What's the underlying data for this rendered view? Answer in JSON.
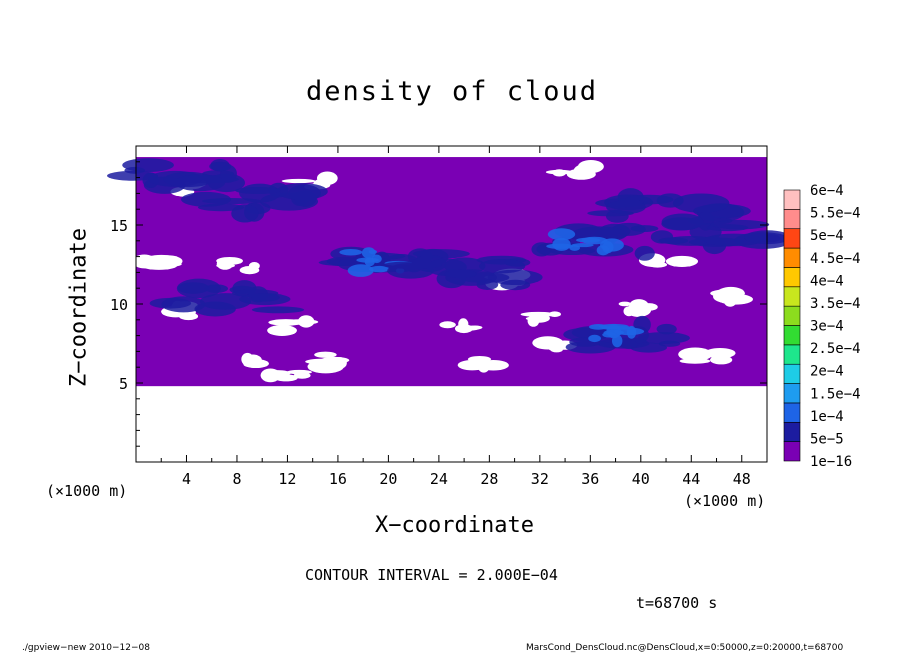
{
  "chart_data": {
    "type": "heatmap",
    "title": "density of cloud",
    "xlabel": "X−coordinate",
    "ylabel": "Z−coordinate",
    "x_unit": "(×1000 m)",
    "y_unit": "(×1000 m)",
    "xlim": [
      0,
      50
    ],
    "ylim": [
      0,
      20
    ],
    "x_ticks": [
      "4",
      "8",
      "12",
      "16",
      "20",
      "24",
      "28",
      "32",
      "36",
      "40",
      "44",
      "48"
    ],
    "y_ticks": [
      "5",
      "10",
      "15"
    ],
    "colorbar": {
      "labels": [
        "1e−16",
        "5e−5",
        "1e−4",
        "1.5e−4",
        "2e−4",
        "2.5e−4",
        "3e−4",
        "3.5e−4",
        "4e−4",
        "4.5e−4",
        "5e−4",
        "5.5e−4",
        "6e−4"
      ],
      "colors": [
        "#7a00b4",
        "#1c1ca0",
        "#1e64e6",
        "#1e9cf0",
        "#1ecce6",
        "#1ee68c",
        "#32dc32",
        "#8cdc1e",
        "#c8e61e",
        "#ffc800",
        "#ff8c00",
        "#ff4614",
        "#ff8c8c",
        "#ffc0c0"
      ]
    },
    "field_regions": {
      "background_level": "1e−16",
      "base_z": 4.8,
      "top_z": 19.3,
      "blobs": [
        {
          "x": 20,
          "z": 12.7,
          "level": "1e−4"
        },
        {
          "x": 26,
          "z": 12.0,
          "level": "5e−5"
        },
        {
          "x": 36,
          "z": 14.0,
          "level": "1e−4"
        },
        {
          "x": 7,
          "z": 10.3,
          "level": "5e−5"
        },
        {
          "x": 38,
          "z": 8.0,
          "level": "1e−4"
        },
        {
          "x": 10,
          "z": 16.5,
          "level": "5e−5"
        },
        {
          "x": 42,
          "z": 16.0,
          "level": "5e−5"
        },
        {
          "x": 3,
          "z": 18.3,
          "level": "5e−5"
        },
        {
          "x": 46,
          "z": 14.5,
          "level": "5e−5"
        }
      ]
    }
  },
  "annotations": {
    "contour_interval": "CONTOUR INTERVAL = 2.000E−04",
    "time": "t=68700 s",
    "footer_left": "./gpview−new   2010−12−08",
    "footer_right": "MarsCond_DensCloud.nc@DensCloud,x=0:50000,z=0:20000,t=68700"
  },
  "colors": {
    "background_purple": "#7a00b4",
    "blue_dark": "#1c1ca0",
    "blue": "#1e64e6"
  }
}
